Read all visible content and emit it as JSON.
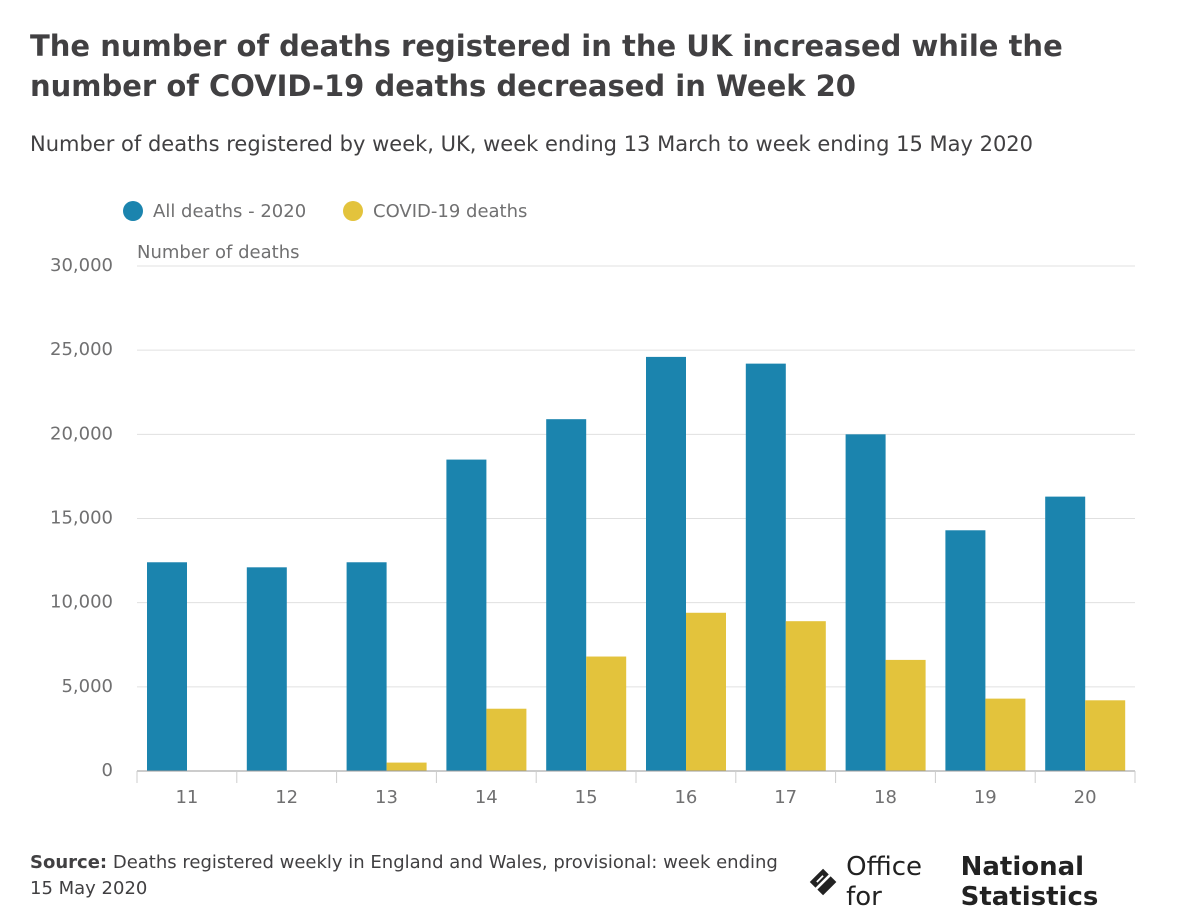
{
  "chart_data": {
    "type": "bar",
    "title": "The number of deaths registered in the UK increased while the number of COVID-19 deaths decreased in Week 20",
    "subtitle": "Number of deaths registered by week, UK, week ending 13 March to week ending 15 May 2020",
    "y_label": "Number of deaths",
    "categories": [
      "11",
      "12",
      "13",
      "14",
      "15",
      "16",
      "17",
      "18",
      "19",
      "20"
    ],
    "series": [
      {
        "name": "All deaths - 2020",
        "color": "#1b84ae",
        "values": [
          12400,
          12100,
          12400,
          18500,
          20900,
          24600,
          24200,
          20000,
          14300,
          16300
        ]
      },
      {
        "name": "COVID-19 deaths",
        "color": "#e3c33c",
        "values": [
          0,
          0,
          500,
          3700,
          6800,
          9400,
          8900,
          6600,
          4300,
          4200
        ]
      }
    ],
    "ylim": [
      0,
      30000
    ],
    "yticks": [
      0,
      {
        "value": 5000,
        "label": "5,000"
      },
      {
        "value": 10000,
        "label": "10,000"
      },
      {
        "value": 15000,
        "label": "15,000"
      },
      {
        "value": 20000,
        "label": "20,000"
      },
      {
        "value": 25000,
        "label": "25,000"
      },
      {
        "value": 30000,
        "label": "30,000"
      }
    ],
    "grid": true,
    "legend": "top-left"
  },
  "footer": {
    "source_label": "Source:",
    "source": "Deaths registered weekly in England and Wales, provisional: week ending 15 May 2020",
    "logo_prefix": "Office for",
    "logo_name": "National Statistics"
  }
}
